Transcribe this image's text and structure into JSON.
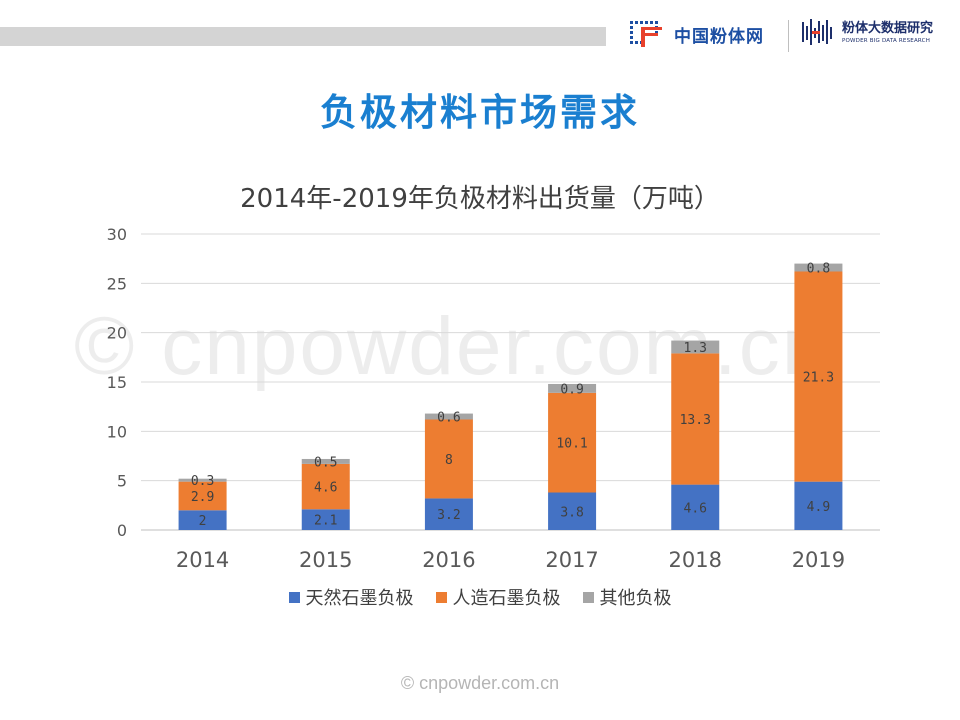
{
  "header": {
    "brand1_name": "中国粉体网",
    "brand2_name": "粉体大数据研究",
    "brand2_sub": "POWDER BIG DATA RESEARCH"
  },
  "page_title": "负极材料市场需求",
  "watermark": "© cnpowder.com.cn",
  "footer": "© cnpowder.com.cn",
  "colors": {
    "series_natural": "#4472c4",
    "series_artificial": "#ed7d31",
    "series_other": "#a5a5a5",
    "title": "#1a7fd0"
  },
  "chart_data": {
    "type": "bar",
    "stacked": true,
    "title": "2014年-2019年负极材料出货量（万吨）",
    "categories": [
      "2014",
      "2015",
      "2016",
      "2017",
      "2018",
      "2019"
    ],
    "series": [
      {
        "name": "天然石墨负极",
        "values": [
          2,
          2.1,
          3.2,
          3.8,
          4.6,
          4.9
        ],
        "labels": [
          "2",
          "2.1",
          "3.2",
          "3.8",
          "4.6",
          "4.9"
        ]
      },
      {
        "name": "人造石墨负极",
        "values": [
          2.9,
          4.6,
          8,
          10.1,
          13.3,
          21.3
        ],
        "labels": [
          "2.9",
          "4.6",
          "8",
          "10.1",
          "13.3",
          "21.3"
        ]
      },
      {
        "name": "其他负极",
        "values": [
          0.3,
          0.5,
          0.6,
          0.9,
          1.3,
          0.8
        ],
        "labels": [
          "0.3",
          "0.5",
          "0.6",
          "0.9",
          "1.3",
          "0.8"
        ]
      }
    ],
    "y_ticks": [
      "0",
      "5",
      "10",
      "15",
      "20",
      "25",
      "30"
    ],
    "ylim": [
      0,
      30
    ],
    "grid": true,
    "legend": "bottom"
  }
}
